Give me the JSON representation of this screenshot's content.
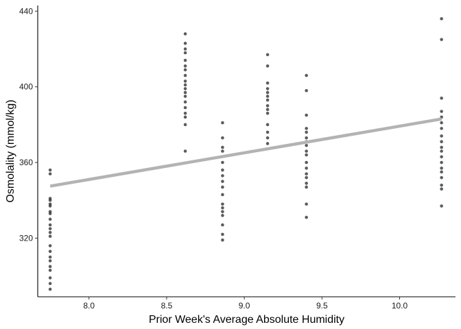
{
  "chart_data": {
    "type": "scatter",
    "title": "",
    "xlabel": "Prior Week's Average Absolute Humidity",
    "ylabel": "Osmolality (mmol/kg)",
    "xlim": [
      7.67,
      10.36
    ],
    "ylim": [
      289,
      443
    ],
    "x_ticks": [
      8.0,
      8.5,
      9.0,
      9.5,
      10.0
    ],
    "x_tick_labels": [
      "8.0",
      "8.5",
      "9.0",
      "9.5",
      "10.0"
    ],
    "y_ticks": [
      320,
      360,
      400,
      440
    ],
    "y_tick_labels": [
      "320",
      "360",
      "400",
      "440"
    ],
    "grid": false,
    "point_color": "#333333",
    "trend_color": "#b3b3b3",
    "trendline": {
      "x": [
        7.75,
        10.27
      ],
      "y": [
        347.5,
        383.0
      ]
    },
    "groups": [
      {
        "x": 7.75,
        "y": [
          356,
          354,
          341,
          340,
          338,
          337,
          334,
          333,
          330,
          327,
          325,
          323,
          321,
          316,
          313,
          310,
          308,
          305,
          303,
          299,
          296,
          293
        ]
      },
      {
        "x": 8.62,
        "y": [
          428,
          423,
          420,
          418,
          414,
          411,
          409,
          406,
          403,
          401,
          399,
          397,
          395,
          392,
          389,
          386,
          384,
          380,
          366
        ]
      },
      {
        "x": 8.86,
        "y": [
          381,
          373,
          368,
          366,
          360,
          356,
          353,
          350,
          347,
          343,
          338,
          336,
          334,
          332,
          327,
          322,
          319
        ]
      },
      {
        "x": 9.15,
        "y": [
          417,
          411,
          402,
          399,
          397,
          395,
          393,
          390,
          388,
          386,
          380,
          376,
          373,
          370
        ]
      },
      {
        "x": 9.4,
        "y": [
          406,
          398,
          385,
          378,
          376,
          373,
          371,
          369,
          366,
          364,
          360,
          357,
          354,
          352,
          349,
          347,
          338,
          331
        ]
      },
      {
        "x": 10.27,
        "y": [
          436,
          425,
          394,
          387,
          384,
          381,
          378,
          374,
          371,
          368,
          366,
          363,
          360,
          357,
          355,
          352,
          348,
          346,
          337
        ]
      }
    ]
  }
}
